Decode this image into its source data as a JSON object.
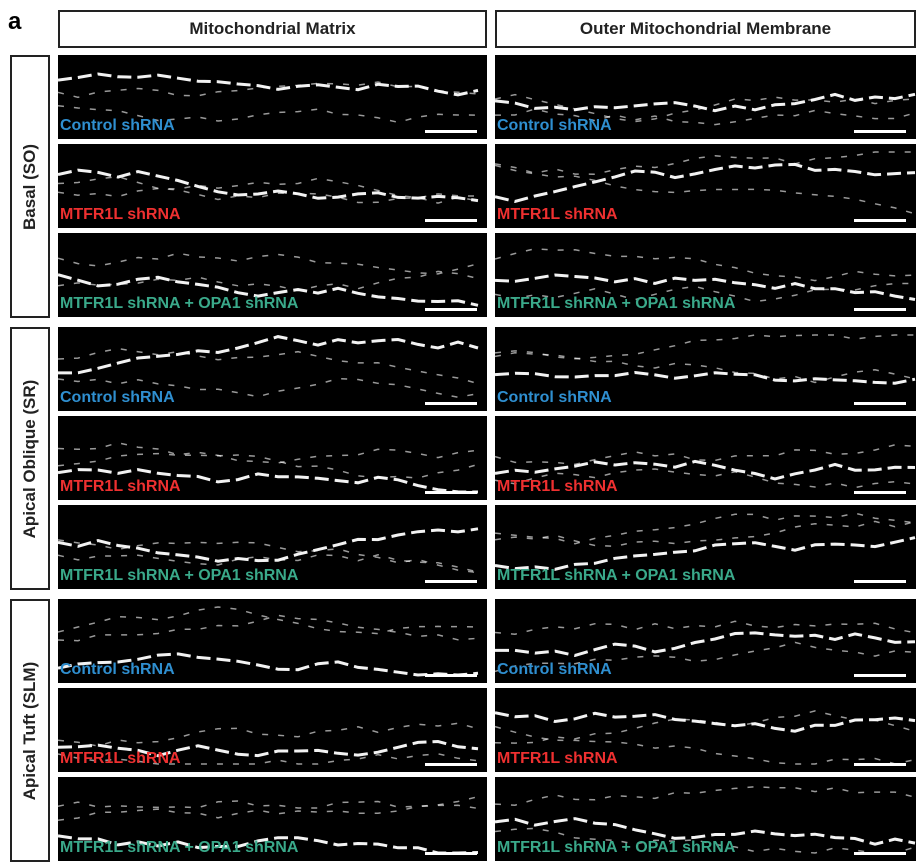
{
  "panel_label": "a",
  "columns": [
    "Mitochondrial Matrix",
    "Outer Mitochondrial Membrane"
  ],
  "rows": [
    {
      "region": "Basal (SO)",
      "conditions": [
        "Control shRNA",
        "MTFR1L shRNA",
        "MTFR1L shRNA + OPA1 shRNA"
      ]
    },
    {
      "region": "Apical Oblique (SR)",
      "conditions": [
        "Control shRNA",
        "MTFR1L shRNA",
        "MTFR1L shRNA + OPA1 shRNA"
      ]
    },
    {
      "region": "Apical Tuft (SLM)",
      "conditions": [
        "Control shRNA",
        "MTFR1L shRNA",
        "MTFR1L shRNA + OPA1 shRNA"
      ]
    }
  ]
}
